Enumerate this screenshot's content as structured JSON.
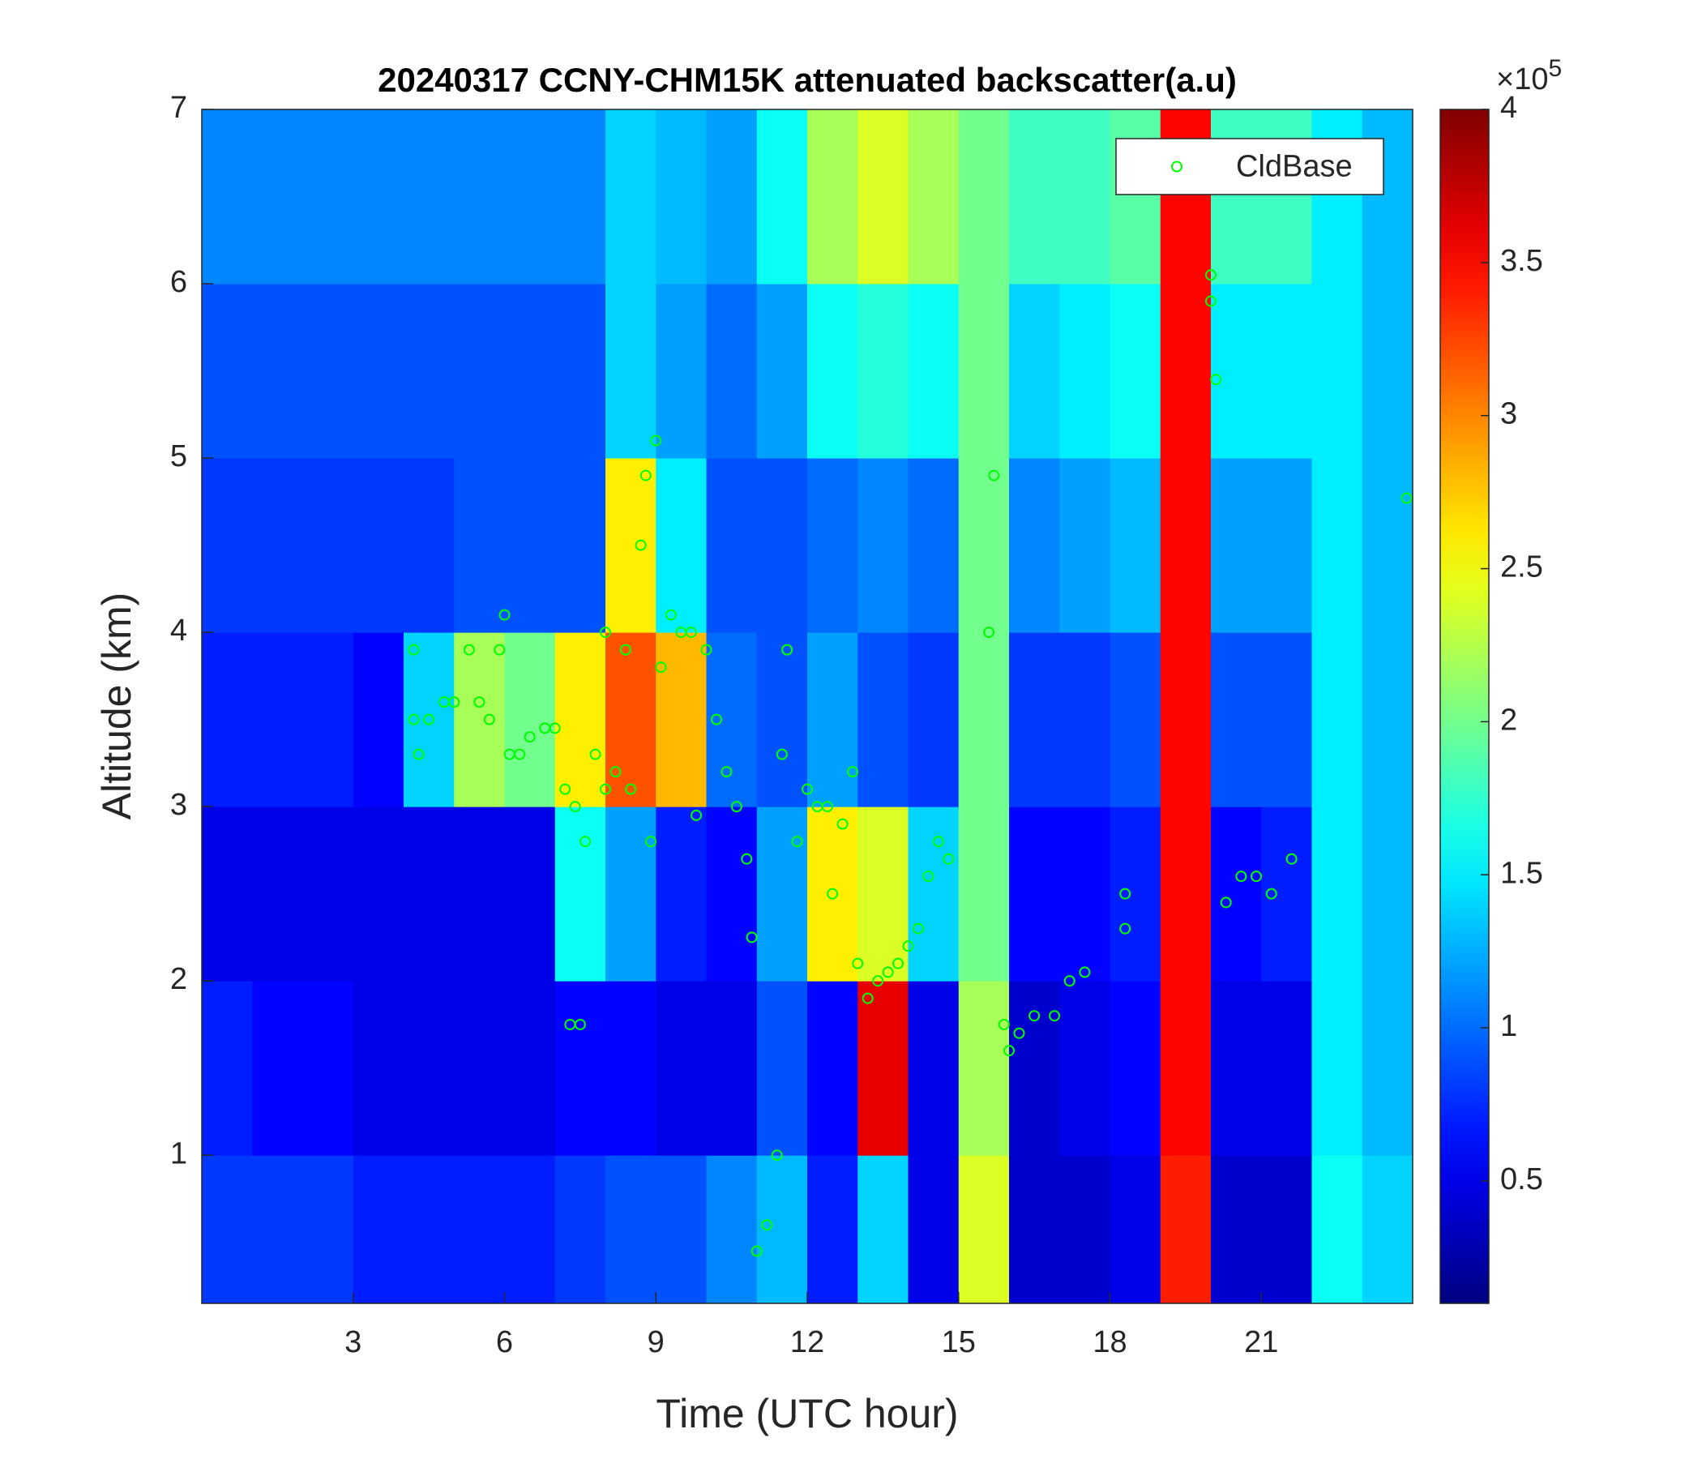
{
  "chart_data": {
    "type": "heatmap",
    "title": "20240317 CCNY-CHM15K attenuated backscatter(a.u)",
    "xlabel": "Time (UTC hour)",
    "ylabel": "Altitude (km)",
    "xlim": [
      0,
      24
    ],
    "ylim": [
      0.15,
      7
    ],
    "xticks": [
      3,
      6,
      9,
      12,
      15,
      18,
      21
    ],
    "yticks": [
      1,
      2,
      3,
      4,
      5,
      6,
      7
    ],
    "x_bins": [
      0,
      1,
      2,
      3,
      4,
      5,
      6,
      7,
      8,
      9,
      10,
      11,
      12,
      13,
      14,
      15,
      16,
      17,
      18,
      19,
      20,
      21,
      22,
      23,
      24
    ],
    "y_bins": [
      0.15,
      1,
      2,
      3,
      4,
      5,
      6,
      7
    ],
    "z": [
      [
        0.8,
        0.8,
        0.8,
        0.7,
        0.7,
        0.7,
        0.7,
        0.8,
        0.9,
        0.9,
        1.1,
        1.3,
        0.7,
        1.4,
        0.5,
        2.4,
        0.4,
        0.4,
        0.5,
        3.4,
        0.4,
        0.4,
        1.6,
        1.4
      ],
      [
        0.7,
        0.6,
        0.6,
        0.5,
        0.5,
        0.5,
        0.5,
        0.6,
        0.6,
        0.5,
        0.5,
        0.9,
        0.6,
        3.6,
        0.5,
        2.2,
        0.4,
        0.5,
        0.6,
        3.5,
        0.5,
        0.5,
        1.5,
        1.3
      ],
      [
        0.5,
        0.5,
        0.5,
        0.5,
        0.5,
        0.5,
        0.5,
        1.6,
        1.2,
        0.7,
        0.6,
        1.2,
        2.6,
        2.4,
        1.4,
        2.0,
        0.6,
        0.6,
        0.7,
        3.5,
        0.6,
        0.7,
        1.5,
        1.3
      ],
      [
        0.7,
        0.7,
        0.7,
        0.6,
        1.4,
        2.2,
        2.0,
        2.6,
        3.2,
        2.8,
        1.0,
        0.9,
        1.2,
        0.9,
        0.8,
        2.0,
        0.8,
        0.8,
        0.9,
        3.5,
        0.9,
        0.9,
        1.5,
        1.3
      ],
      [
        0.8,
        0.8,
        0.8,
        0.8,
        0.8,
        0.9,
        0.9,
        0.9,
        2.6,
        1.5,
        0.9,
        0.9,
        1.0,
        1.1,
        1.0,
        2.0,
        1.1,
        1.2,
        1.3,
        3.5,
        1.2,
        1.2,
        1.5,
        1.3
      ],
      [
        0.9,
        0.9,
        0.9,
        0.9,
        0.9,
        0.9,
        0.9,
        0.9,
        1.4,
        1.2,
        1.0,
        1.2,
        1.6,
        1.7,
        1.6,
        2.0,
        1.4,
        1.5,
        1.6,
        3.5,
        1.5,
        1.5,
        1.5,
        1.3
      ],
      [
        1.1,
        1.1,
        1.1,
        1.1,
        1.1,
        1.1,
        1.1,
        1.1,
        1.4,
        1.3,
        1.2,
        1.6,
        2.2,
        2.4,
        2.2,
        2.0,
        1.8,
        1.8,
        1.9,
        3.5,
        1.8,
        1.8,
        1.5,
        1.3
      ]
    ],
    "colormap": "jet",
    "clim": [
      0.1,
      4
    ],
    "cticks": [
      0.5,
      1,
      1.5,
      2,
      2.5,
      3,
      3.5,
      4
    ],
    "colorbar_multiplier": {
      "base": "×10",
      "exponent": "5"
    },
    "legend": "northeast",
    "series": [
      {
        "name": "CldBase",
        "type": "scatter",
        "color": "#00ff00",
        "x": [
          4.2,
          4.2,
          4.3,
          4.5,
          4.8,
          5.0,
          5.3,
          5.5,
          5.7,
          5.9,
          6.0,
          6.1,
          6.3,
          6.5,
          6.8,
          7.0,
          7.2,
          7.3,
          7.5,
          7.4,
          7.6,
          7.8,
          8.0,
          8.0,
          8.2,
          8.4,
          8.5,
          8.7,
          8.8,
          8.9,
          9.0,
          9.1,
          9.3,
          9.5,
          9.7,
          9.8,
          10.0,
          10.2,
          10.4,
          10.6,
          10.8,
          10.9,
          11.0,
          11.2,
          11.4,
          11.5,
          11.6,
          11.8,
          12.0,
          12.2,
          12.4,
          12.5,
          12.7,
          12.9,
          13.0,
          13.2,
          13.4,
          13.6,
          13.8,
          14.0,
          14.2,
          14.4,
          14.6,
          14.8,
          15.7,
          15.6,
          15.9,
          16.0,
          16.2,
          16.5,
          16.9,
          17.2,
          17.5,
          18.3,
          18.3,
          20.0,
          20.0,
          20.1,
          20.3,
          20.6,
          20.9,
          21.2,
          21.6,
          23.88
        ],
        "y": [
          3.9,
          3.5,
          3.3,
          3.5,
          3.6,
          3.6,
          3.9,
          3.6,
          3.5,
          3.9,
          4.1,
          3.3,
          3.3,
          3.4,
          3.45,
          3.45,
          3.1,
          1.75,
          1.75,
          3.0,
          2.8,
          3.3,
          3.1,
          4.0,
          3.2,
          3.9,
          3.1,
          4.5,
          4.9,
          2.8,
          5.1,
          3.8,
          4.1,
          4.0,
          4.0,
          2.95,
          3.9,
          3.5,
          3.2,
          3.0,
          2.7,
          2.25,
          0.45,
          0.6,
          1.0,
          3.3,
          3.9,
          2.8,
          3.1,
          3.0,
          3.0,
          2.5,
          2.9,
          3.2,
          2.1,
          1.9,
          2.0,
          2.05,
          2.1,
          2.2,
          2.3,
          2.6,
          2.8,
          2.7,
          4.9,
          4.0,
          1.75,
          1.6,
          1.7,
          1.8,
          1.8,
          2.0,
          2.05,
          2.3,
          2.5,
          6.05,
          5.9,
          5.45,
          2.45,
          2.6,
          2.6,
          2.5,
          2.7,
          4.77
        ]
      }
    ]
  }
}
